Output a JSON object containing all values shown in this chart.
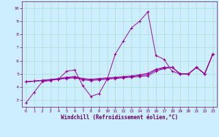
{
  "xlabel": "Windchill (Refroidissement éolien,°C)",
  "bg_color": "#cceeff",
  "line_color": "#990099",
  "grid_color": "#aaddcc",
  "spine_color": "#660066",
  "ylim": [
    2.5,
    10.5
  ],
  "xlim": [
    -0.5,
    23.5
  ],
  "yticks": [
    3,
    4,
    5,
    6,
    7,
    8,
    9,
    10
  ],
  "x_ticks": [
    0,
    1,
    2,
    3,
    4,
    5,
    6,
    7,
    8,
    9,
    10,
    11,
    12,
    13,
    14,
    15,
    16,
    17,
    18,
    19,
    20,
    21,
    22,
    23
  ],
  "series1": [
    2.8,
    3.6,
    4.4,
    4.5,
    4.6,
    5.2,
    5.3,
    4.1,
    3.3,
    3.5,
    4.6,
    6.5,
    7.5,
    8.5,
    9.0,
    9.7,
    6.4,
    6.1,
    5.2,
    5.0,
    5.0,
    5.5,
    5.0,
    6.5
  ],
  "series2": [
    4.4,
    4.45,
    4.5,
    4.55,
    4.6,
    4.65,
    4.7,
    4.55,
    4.5,
    4.55,
    4.6,
    4.65,
    4.7,
    4.75,
    4.8,
    4.85,
    5.2,
    5.4,
    5.5,
    5.0,
    5.0,
    5.5,
    5.0,
    6.5
  ],
  "series3": [
    4.4,
    4.45,
    4.5,
    4.55,
    4.62,
    4.7,
    4.75,
    4.6,
    4.55,
    4.6,
    4.65,
    4.7,
    4.75,
    4.8,
    4.87,
    4.95,
    5.3,
    5.45,
    5.5,
    5.0,
    5.0,
    5.5,
    5.0,
    6.5
  ],
  "series4": [
    4.4,
    4.45,
    4.52,
    4.58,
    4.65,
    4.75,
    4.8,
    4.65,
    4.6,
    4.65,
    4.7,
    4.75,
    4.8,
    4.85,
    4.93,
    5.05,
    5.35,
    5.5,
    5.5,
    5.0,
    5.0,
    5.5,
    5.0,
    6.5
  ]
}
